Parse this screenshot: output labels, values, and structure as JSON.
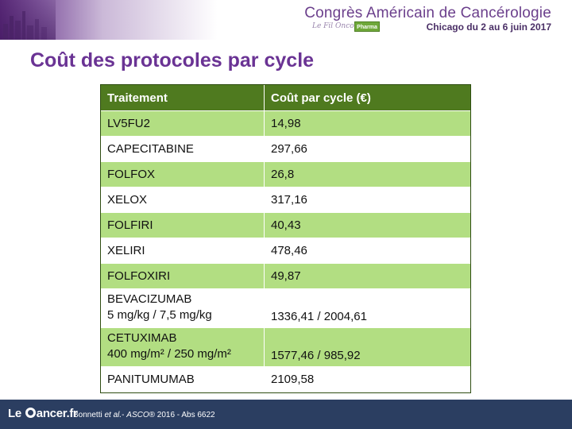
{
  "banner": {
    "title": "Congrès Américain de Cancérologie",
    "subtitle": "Chicago du 2 au 6 juin 2017",
    "brand_script": "Le Fil Onco",
    "pharma_badge": "Pharma"
  },
  "slide": {
    "title": "Coût des protocoles par cycle"
  },
  "table": {
    "headers": [
      "Traitement",
      "Coût par cycle (€)"
    ],
    "rows": [
      {
        "treatment": "LV5FU2",
        "treatment_detail": "",
        "cost": "14,98"
      },
      {
        "treatment": "CAPECITABINE",
        "treatment_detail": "",
        "cost": "297,66"
      },
      {
        "treatment": "FOLFOX",
        "treatment_detail": "",
        "cost": "26,8"
      },
      {
        "treatment": "XELOX",
        "treatment_detail": "",
        "cost": "317,16"
      },
      {
        "treatment": "FOLFIRI",
        "treatment_detail": "",
        "cost": "40,43"
      },
      {
        "treatment": "XELIRI",
        "treatment_detail": "",
        "cost": "478,46"
      },
      {
        "treatment": "FOLFOXIRI",
        "treatment_detail": "",
        "cost": "49,87"
      },
      {
        "treatment": "BEVACIZUMAB",
        "treatment_detail": "5 mg/kg / 7,5 mg/kg",
        "cost": "1336,41 / 2004,61"
      },
      {
        "treatment": "CETUXIMAB",
        "treatment_detail": "400 mg/m² / 250 mg/m²",
        "cost": "1577,46 / 985,92"
      },
      {
        "treatment": "PANITUMUMAB",
        "treatment_detail": "",
        "cost": "2109,58"
      }
    ],
    "colors": {
      "header": "#4f7a1f",
      "band": "#b2de82"
    }
  },
  "footer": {
    "logo_prefix": "Le ",
    "logo_suffix": "ancer.fr",
    "reference_author": "Bonnetti ",
    "reference_etal": "et al.",
    "reference_mid": "- ",
    "reference_journal": "ASCO",
    "reference_rest": "® 2016 - Abs 6622"
  }
}
